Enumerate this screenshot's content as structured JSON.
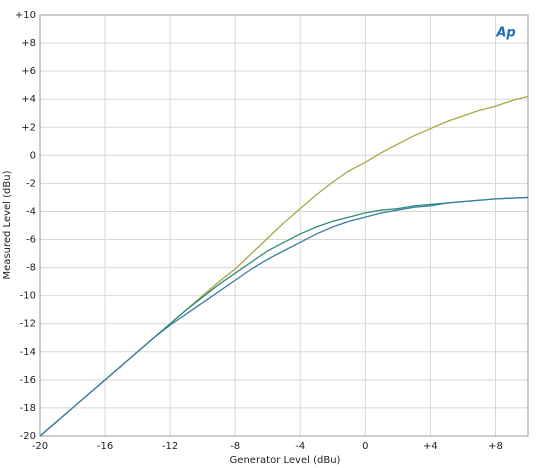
{
  "chart_data": {
    "type": "line",
    "xlabel": "Generator Level (dBu)",
    "ylabel": "Measured Level (dBu)",
    "logo": "Ap",
    "x": [
      -20,
      -19,
      -18,
      -17,
      -16,
      -15,
      -14,
      -13,
      -12,
      -11,
      -10,
      -9,
      -8,
      -7,
      -6,
      -5,
      -4,
      -3,
      -2,
      -1,
      0,
      1,
      2,
      3,
      4,
      5,
      6,
      7,
      8,
      9,
      10
    ],
    "series": [
      {
        "color": "#a9a545",
        "values": [
          -20,
          -19,
          -18,
          -17,
          -16,
          -15,
          -14,
          -13,
          -12,
          -11,
          -10,
          -9,
          -8.1,
          -7,
          -5.9,
          -4.8,
          -3.8,
          -2.8,
          -1.9,
          -1.1,
          -0.5,
          0.2,
          0.8,
          1.4,
          1.9,
          2.4,
          2.8,
          3.2,
          3.5,
          3.9,
          4.2
        ]
      },
      {
        "color": "#2f8c75",
        "values": [
          -20,
          -19,
          -18,
          -17,
          -16,
          -15,
          -14,
          -13,
          -12,
          -11,
          -10.1,
          -9.2,
          -8.4,
          -7.6,
          -6.8,
          -6.2,
          -5.6,
          -5.1,
          -4.7,
          -4.4,
          -4.1,
          -3.9,
          -3.8,
          -3.6,
          -3.5,
          -3.4,
          -3.3,
          -3.2,
          -3.1,
          -3.05,
          -3.0
        ]
      },
      {
        "color": "#3b7fa3",
        "values": [
          -20,
          -19,
          -18,
          -17,
          -16,
          -15,
          -14,
          -13,
          -12.1,
          -11.3,
          -10.5,
          -9.7,
          -8.9,
          -8.1,
          -7.4,
          -6.8,
          -6.2,
          -5.6,
          -5.1,
          -4.7,
          -4.4,
          -4.1,
          -3.9,
          -3.7,
          -3.6,
          -3.4,
          -3.3,
          -3.2,
          -3.1,
          -3.05,
          -3.0
        ]
      }
    ],
    "xlim": [
      -20,
      10
    ],
    "ylim": [
      -20,
      10
    ],
    "xticks": [
      -20,
      -16,
      -12,
      -8,
      -4,
      0,
      {
        "value": 4,
        "label": "+4"
      },
      {
        "value": 8,
        "label": "+8"
      }
    ],
    "yticks": [
      -20,
      -18,
      -16,
      -14,
      -12,
      -10,
      -8,
      -6,
      -4,
      -2,
      0,
      {
        "value": 2,
        "label": "+2"
      },
      {
        "value": 4,
        "label": "+4"
      },
      {
        "value": 6,
        "label": "+6"
      },
      {
        "value": 8,
        "label": "+8"
      },
      {
        "value": 10,
        "label": "+10"
      }
    ],
    "grid": true
  }
}
